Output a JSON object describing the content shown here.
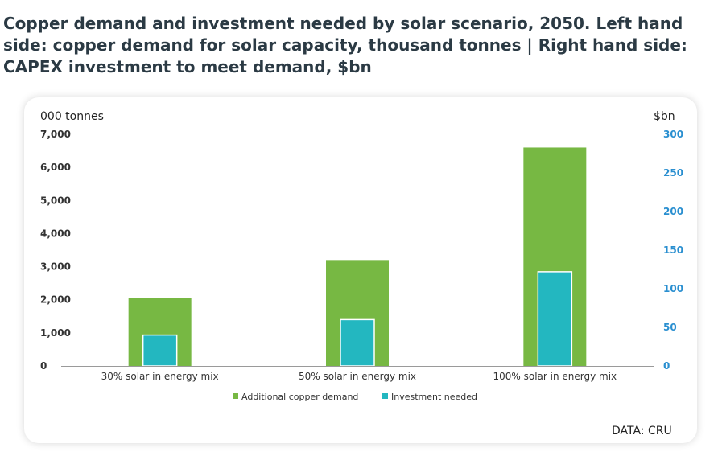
{
  "title": "Copper demand and investment needed by solar scenario, 2050. Left hand side: copper demand for solar capacity, thousand tonnes | Right hand side: CAPEX investment to meet demand, $bn",
  "source": "DATA: CRU",
  "colors": {
    "copper": "#77b843",
    "investment": "#23b7c0",
    "right_axis": "#2a8fd0",
    "baseline": "#9a9a9a"
  },
  "chart_data": {
    "type": "bar",
    "categories": [
      "30% solar in energy mix",
      "50% solar in energy mix",
      "100% solar in energy mix"
    ],
    "series": [
      {
        "name": "Additional copper demand",
        "axis": "left",
        "values": [
          2050,
          3200,
          6600
        ]
      },
      {
        "name": "Investment needed",
        "axis": "right",
        "values": [
          40,
          60,
          122
        ]
      }
    ],
    "ylabel_left": "000 tonnes",
    "ylabel_right": "$bn",
    "ylim_left": [
      0,
      7000
    ],
    "ylim_right": [
      0,
      300
    ],
    "yticks_left": [
      "0",
      "1,000",
      "2,000",
      "3,000",
      "4,000",
      "5,000",
      "6,000",
      "7,000"
    ],
    "yticks_right": [
      "0",
      "50",
      "100",
      "150",
      "200",
      "250",
      "300"
    ],
    "grid": false,
    "legend_position": "bottom"
  }
}
